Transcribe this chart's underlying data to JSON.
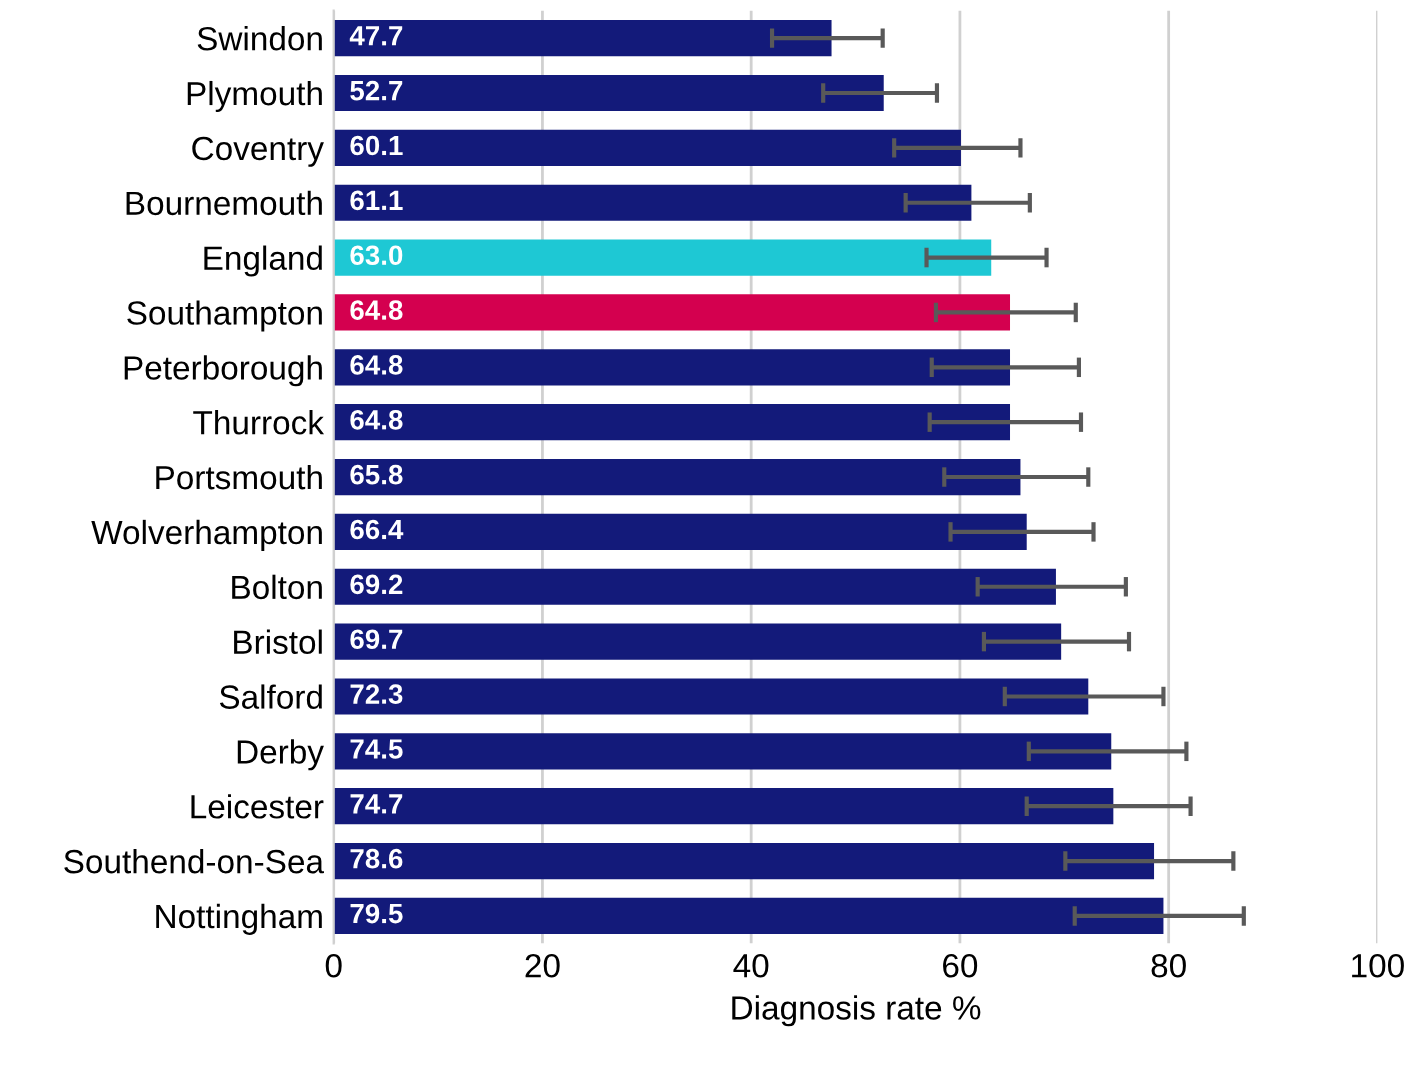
{
  "chart_data": {
    "type": "bar",
    "orientation": "horizontal",
    "xlabel": "Diagnosis rate %",
    "categories": [
      "Swindon",
      "Plymouth",
      "Coventry",
      "Bournemouth",
      "England",
      "Southampton",
      "Peterborough",
      "Thurrock",
      "Portsmouth",
      "Wolverhampton",
      "Bolton",
      "Bristol",
      "Salford",
      "Derby",
      "Leicester",
      "Southend-on-Sea",
      "Nottingham"
    ],
    "values": [
      47.7,
      52.7,
      60.1,
      61.1,
      63.0,
      64.8,
      64.8,
      64.8,
      65.8,
      66.4,
      69.2,
      69.7,
      72.3,
      74.5,
      74.7,
      78.6,
      79.5
    ],
    "colors": [
      "#131a7a",
      "#131a7a",
      "#131a7a",
      "#131a7a",
      "#1ec8d4",
      "#d4004f",
      "#131a7a",
      "#131a7a",
      "#131a7a",
      "#131a7a",
      "#131a7a",
      "#131a7a",
      "#131a7a",
      "#131a7a",
      "#131a7a",
      "#131a7a",
      "#131a7a"
    ],
    "errors": [
      [
        42.0,
        52.6
      ],
      [
        46.9,
        57.8
      ],
      [
        53.7,
        65.8
      ],
      [
        54.8,
        66.7
      ],
      [
        56.8,
        68.3
      ],
      [
        57.7,
        71.1
      ],
      [
        57.3,
        71.4
      ],
      [
        57.1,
        71.6
      ],
      [
        58.5,
        72.3
      ],
      [
        59.1,
        72.8
      ],
      [
        61.7,
        75.9
      ],
      [
        62.3,
        76.2
      ],
      [
        64.3,
        79.5
      ],
      [
        66.6,
        81.7
      ],
      [
        66.4,
        82.1
      ],
      [
        70.1,
        86.2
      ],
      [
        71.0,
        87.2
      ]
    ],
    "value_labels": [
      "47.7",
      "52.7",
      "60.1",
      "61.1",
      "63.0",
      "64.8",
      "64.8",
      "64.8",
      "65.8",
      "66.4",
      "69.2",
      "69.7",
      "72.3",
      "74.5",
      "74.7",
      "78.6",
      "79.5"
    ],
    "xlim": [
      0,
      100
    ],
    "xticks": [
      0,
      20,
      40,
      60,
      80,
      100
    ],
    "grid": "x",
    "legend": false
  }
}
